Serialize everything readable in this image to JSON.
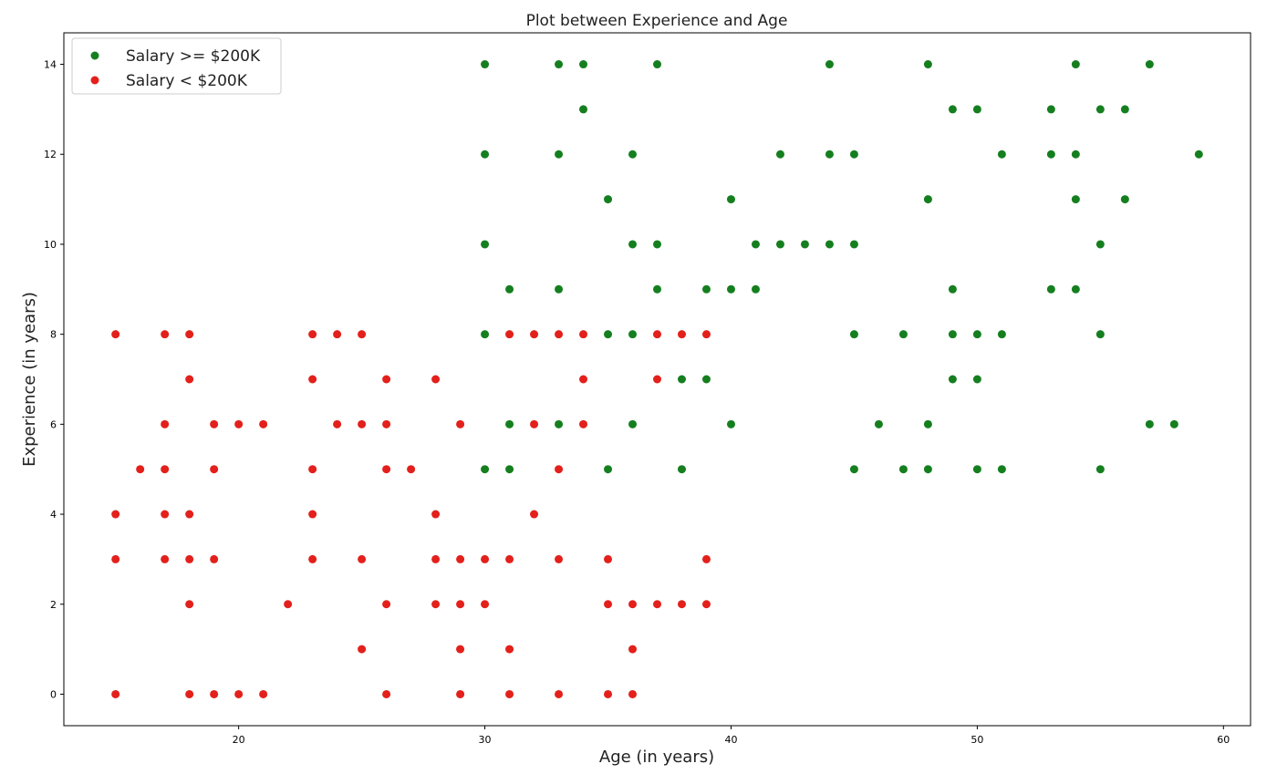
{
  "chart_data": {
    "type": "scatter",
    "title": "Plot between Experience and Age",
    "xlabel": "Age (in years)",
    "ylabel": "Experience (in years)",
    "xlim": [
      12.9,
      61.1
    ],
    "ylim": [
      -0.7,
      14.7
    ],
    "xticks": [
      20,
      30,
      40,
      50,
      60
    ],
    "yticks": [
      0,
      2,
      4,
      6,
      8,
      10,
      12,
      14
    ],
    "grid": false,
    "legend_position": "top-left",
    "series": [
      {
        "name": "Salary >= $200K",
        "color": "#157f1f",
        "points": [
          [
            30,
            14
          ],
          [
            33,
            14
          ],
          [
            34,
            14
          ],
          [
            37,
            14
          ],
          [
            44,
            14
          ],
          [
            48,
            14
          ],
          [
            54,
            14
          ],
          [
            57,
            14
          ],
          [
            34,
            13
          ],
          [
            49,
            13
          ],
          [
            50,
            13
          ],
          [
            53,
            13
          ],
          [
            55,
            13
          ],
          [
            56,
            13
          ],
          [
            30,
            12
          ],
          [
            33,
            12
          ],
          [
            36,
            12
          ],
          [
            42,
            12
          ],
          [
            44,
            12
          ],
          [
            45,
            12
          ],
          [
            51,
            12
          ],
          [
            53,
            12
          ],
          [
            54,
            12
          ],
          [
            59,
            12
          ],
          [
            35,
            11
          ],
          [
            40,
            11
          ],
          [
            48,
            11
          ],
          [
            54,
            11
          ],
          [
            56,
            11
          ],
          [
            30,
            10
          ],
          [
            36,
            10
          ],
          [
            37,
            10
          ],
          [
            41,
            10
          ],
          [
            42,
            10
          ],
          [
            43,
            10
          ],
          [
            44,
            10
          ],
          [
            45,
            10
          ],
          [
            55,
            10
          ],
          [
            31,
            9
          ],
          [
            33,
            9
          ],
          [
            37,
            9
          ],
          [
            39,
            9
          ],
          [
            40,
            9
          ],
          [
            41,
            9
          ],
          [
            49,
            9
          ],
          [
            53,
            9
          ],
          [
            54,
            9
          ],
          [
            30,
            8
          ],
          [
            35,
            8
          ],
          [
            36,
            8
          ],
          [
            45,
            8
          ],
          [
            47,
            8
          ],
          [
            49,
            8
          ],
          [
            50,
            8
          ],
          [
            51,
            8
          ],
          [
            55,
            8
          ],
          [
            38,
            7
          ],
          [
            39,
            7
          ],
          [
            49,
            7
          ],
          [
            50,
            7
          ],
          [
            31,
            6
          ],
          [
            33,
            6
          ],
          [
            36,
            6
          ],
          [
            40,
            6
          ],
          [
            46,
            6
          ],
          [
            48,
            6
          ],
          [
            57,
            6
          ],
          [
            58,
            6
          ],
          [
            30,
            5
          ],
          [
            31,
            5
          ],
          [
            35,
            5
          ],
          [
            38,
            5
          ],
          [
            45,
            5
          ],
          [
            47,
            5
          ],
          [
            48,
            5
          ],
          [
            50,
            5
          ],
          [
            51,
            5
          ],
          [
            55,
            5
          ]
        ]
      },
      {
        "name": "Salary < $200K",
        "color": "#e3201b",
        "points": [
          [
            15,
            8
          ],
          [
            17,
            8
          ],
          [
            18,
            8
          ],
          [
            23,
            8
          ],
          [
            24,
            8
          ],
          [
            25,
            8
          ],
          [
            31,
            8
          ],
          [
            32,
            8
          ],
          [
            33,
            8
          ],
          [
            34,
            8
          ],
          [
            37,
            8
          ],
          [
            38,
            8
          ],
          [
            39,
            8
          ],
          [
            18,
            7
          ],
          [
            23,
            7
          ],
          [
            26,
            7
          ],
          [
            28,
            7
          ],
          [
            34,
            7
          ],
          [
            37,
            7
          ],
          [
            17,
            6
          ],
          [
            19,
            6
          ],
          [
            20,
            6
          ],
          [
            21,
            6
          ],
          [
            24,
            6
          ],
          [
            25,
            6
          ],
          [
            26,
            6
          ],
          [
            29,
            6
          ],
          [
            32,
            6
          ],
          [
            34,
            6
          ],
          [
            16,
            5
          ],
          [
            17,
            5
          ],
          [
            19,
            5
          ],
          [
            23,
            5
          ],
          [
            26,
            5
          ],
          [
            27,
            5
          ],
          [
            33,
            5
          ],
          [
            15,
            4
          ],
          [
            17,
            4
          ],
          [
            18,
            4
          ],
          [
            23,
            4
          ],
          [
            28,
            4
          ],
          [
            32,
            4
          ],
          [
            15,
            3
          ],
          [
            17,
            3
          ],
          [
            18,
            3
          ],
          [
            19,
            3
          ],
          [
            23,
            3
          ],
          [
            25,
            3
          ],
          [
            28,
            3
          ],
          [
            29,
            3
          ],
          [
            30,
            3
          ],
          [
            31,
            3
          ],
          [
            33,
            3
          ],
          [
            35,
            3
          ],
          [
            39,
            3
          ],
          [
            18,
            2
          ],
          [
            22,
            2
          ],
          [
            26,
            2
          ],
          [
            28,
            2
          ],
          [
            29,
            2
          ],
          [
            30,
            2
          ],
          [
            35,
            2
          ],
          [
            36,
            2
          ],
          [
            37,
            2
          ],
          [
            38,
            2
          ],
          [
            39,
            2
          ],
          [
            25,
            1
          ],
          [
            29,
            1
          ],
          [
            31,
            1
          ],
          [
            36,
            1
          ],
          [
            15,
            0
          ],
          [
            18,
            0
          ],
          [
            19,
            0
          ],
          [
            20,
            0
          ],
          [
            21,
            0
          ],
          [
            26,
            0
          ],
          [
            29,
            0
          ],
          [
            31,
            0
          ],
          [
            33,
            0
          ],
          [
            35,
            0
          ],
          [
            36,
            0
          ]
        ]
      }
    ]
  }
}
